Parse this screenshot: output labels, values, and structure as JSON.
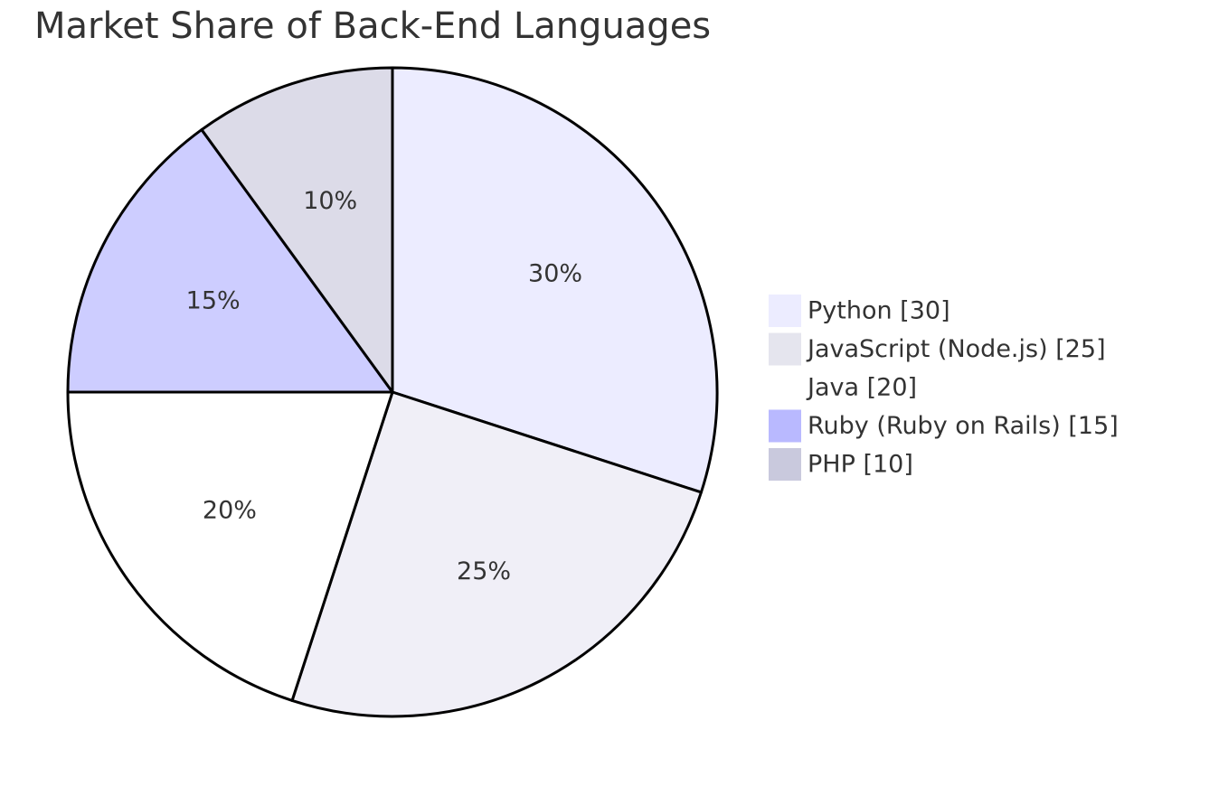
{
  "chart_data": {
    "type": "pie",
    "title": "Market Share of Back-End Languages",
    "slices": [
      {
        "label": "Python",
        "value": 30,
        "percent_label": "30%",
        "legend_label": "Python [30]",
        "color": "#ECECFF"
      },
      {
        "label": "JavaScript (Node.js)",
        "value": 25,
        "percent_label": "25%",
        "legend_label": "JavaScript (Node.js) [25]",
        "color": "#F0EFF7"
      },
      {
        "label": "Java",
        "value": 20,
        "percent_label": "20%",
        "legend_label": "Java [20]",
        "color": "#FFFFFF"
      },
      {
        "label": "Ruby (Ruby on Rails)",
        "value": 15,
        "percent_label": "15%",
        "legend_label": "Ruby (Ruby on Rails) [15]",
        "color": "#CDCDFF"
      },
      {
        "label": "PHP",
        "value": 10,
        "percent_label": "10%",
        "legend_label": "PHP [10]",
        "color": "#DCDBE8"
      }
    ],
    "legend_position": "right",
    "legend_colors": [
      "#ECECFF",
      "#E5E5EE",
      "#FFFFFF",
      "#B9B9FF",
      "#C9C9DD"
    ],
    "stroke_color": "#000000"
  }
}
